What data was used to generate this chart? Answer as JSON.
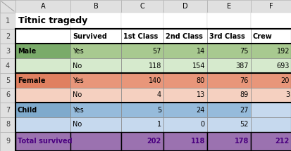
{
  "title": "Titnic tragedy",
  "col_letters": [
    "A",
    "B",
    "C",
    "D",
    "E",
    "F"
  ],
  "row_numbers": [
    "1",
    "2",
    "3",
    "4",
    "5",
    "6",
    "7",
    "8",
    "9"
  ],
  "data_headers": [
    "",
    "Survived",
    "1st Class",
    "2nd Class",
    "3rd Class",
    "Crew"
  ],
  "rows": [
    [
      "Male",
      "Yes",
      "57",
      "14",
      "75",
      "192"
    ],
    [
      "",
      "No",
      "118",
      "154",
      "387",
      "693"
    ],
    [
      "Female",
      "Yes",
      "140",
      "80",
      "76",
      "20"
    ],
    [
      "",
      "No",
      "4",
      "13",
      "89",
      "3"
    ],
    [
      "Child",
      "Yes",
      "5",
      "24",
      "27",
      ""
    ],
    [
      "",
      "No",
      "1",
      "0",
      "52",
      ""
    ]
  ],
  "total_row": [
    "Total survived",
    "",
    "202",
    "118",
    "178",
    "212"
  ],
  "row_label_bold": [
    true,
    false,
    true,
    false,
    true,
    false
  ],
  "cell_colors": {
    "header_bg": "#e0e0e0",
    "header_text": "#000000",
    "white": "#ffffff",
    "male_dark": "#7aab6a",
    "male_light": "#a8c990",
    "male_lighter": "#d6eacd",
    "female_dark": "#e08060",
    "female_mid": "#e8967a",
    "female_light": "#f5d0c0",
    "child_dark": "#7faacc",
    "child_mid": "#96bbdb",
    "child_light": "#c6d9ee",
    "total_bg": "#9b72b0",
    "total_text": "#4a0080"
  },
  "row_bgs": [
    [
      "#7aab6a",
      "#a8c990",
      "#a8c990",
      "#a8c990",
      "#a8c990",
      "#a8c990"
    ],
    [
      "#d6eacd",
      "#d6eacd",
      "#d6eacd",
      "#d6eacd",
      "#d6eacd",
      "#d6eacd"
    ],
    [
      "#e08060",
      "#e8967a",
      "#e8967a",
      "#e8967a",
      "#e8967a",
      "#e8967a"
    ],
    [
      "#f5d0c0",
      "#f5d0c0",
      "#f5d0c0",
      "#f5d0c0",
      "#f5d0c0",
      "#f5d0c0"
    ],
    [
      "#7faacc",
      "#96bbdb",
      "#96bbdb",
      "#96bbdb",
      "#96bbdb",
      "#c6d9ee"
    ],
    [
      "#c6d9ee",
      "#c6d9ee",
      "#c6d9ee",
      "#c6d9ee",
      "#c6d9ee",
      "#c6d9ee"
    ]
  ],
  "figsize": [
    4.14,
    2.15
  ],
  "dpi": 100
}
